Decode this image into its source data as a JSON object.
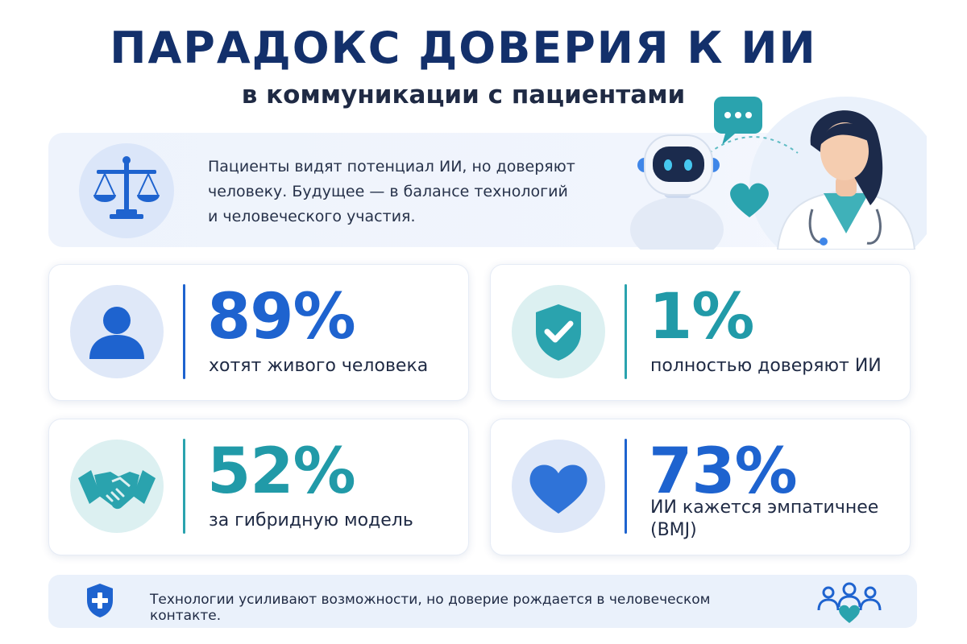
{
  "header": {
    "title": "ПАРАДОКС ДОВЕРИЯ К ИИ",
    "subtitle": "в коммуникации с пациентами"
  },
  "intro": {
    "icon": "scales-icon",
    "text": "Пациенты видят потенциал ИИ, но доверяют человеку. Будущее — в балансе технологий и человеческого участия.",
    "illustration": {
      "icons": [
        "robot-icon",
        "doctor-icon",
        "chat-bubble-icon",
        "heart-icon"
      ]
    }
  },
  "stats": [
    {
      "value": "89%",
      "label": "хотят живого человека",
      "icon": "person-icon",
      "accent": "#1e63cf"
    },
    {
      "value": "1%",
      "label": "полностью доверяют ИИ",
      "icon": "shield-check-icon",
      "accent": "#219aa8"
    },
    {
      "value": "52%",
      "label": "за гибридную модель",
      "icon": "handshake-icon",
      "accent": "#219aa8"
    },
    {
      "value": "73%",
      "label": "ИИ кажется эмпатичнее (BMJ)",
      "icon": "heart-icon",
      "accent": "#1e63cf"
    }
  ],
  "footer": {
    "text": "Технологии усиливают возможности, но доверие рождается в человеческом контакте.",
    "left_icon": "shield-plus-icon",
    "right_icon": "people-heart-icon"
  },
  "colors": {
    "title": "#13306b",
    "blue_accent": "#1e63cf",
    "teal_accent": "#219aa8",
    "panel_background": "#eef3fc"
  }
}
